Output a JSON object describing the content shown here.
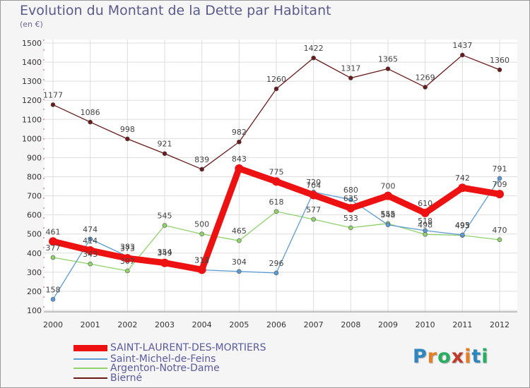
{
  "title": "Evolution du Montant de la Dette par Habitant",
  "subtitle": "(en €)",
  "colors": {
    "background": "#f5f5f5",
    "grid": "#dddddd",
    "axis_text": "#333333",
    "legend_text": "#5a5aa0"
  },
  "logo": {
    "text": "Proxiti",
    "letter_colors": [
      "#2e86c1",
      "#e67e22",
      "#27ae60",
      "#c0392b",
      "#e67e22",
      "#2e86c1",
      "#27ae60"
    ]
  },
  "chart_data": {
    "type": "line",
    "title": "Evolution du Montant de la Dette par Habitant",
    "ylabel": "(en €)",
    "xlabel": "",
    "x": [
      "2000",
      "2001",
      "2002",
      "2003",
      "2004",
      "2005",
      "2006",
      "2007",
      "2008",
      "2009",
      "2010",
      "2011",
      "2012"
    ],
    "ylim": [
      100,
      1500
    ],
    "yticks": [
      100,
      200,
      300,
      400,
      500,
      600,
      700,
      800,
      900,
      1000,
      1100,
      1200,
      1300,
      1400,
      1500
    ],
    "grid": true,
    "legend_position": "bottom",
    "series": [
      {
        "name": "Bierné",
        "color": "#6b1a1a",
        "width": "thin",
        "values": [
          1177,
          1086,
          998,
          921,
          839,
          982,
          1260,
          1422,
          1317,
          1365,
          1269,
          1437,
          1360
        ]
      },
      {
        "name": "Argenton-Notre-Dame",
        "color": "#8fd16a",
        "width": "thin",
        "values": [
          377,
          343,
          307,
          545,
          500,
          465,
          618,
          577,
          533,
          555,
          498,
          493,
          470
        ]
      },
      {
        "name": "Saint-Michel-de-Feins",
        "color": "#5b9bd5",
        "width": "thin",
        "values": [
          158,
          474,
          383,
          354,
          312,
          304,
          296,
          720,
          680,
          548,
          518,
          495,
          791
        ]
      },
      {
        "name": "SAINT-LAURENT-DES-MORTIERS",
        "color": "#ee1111",
        "width": "thick",
        "values": [
          461,
          414,
          373,
          349,
          313,
          843,
          775,
          704,
          635,
          700,
          610,
          742,
          709
        ]
      }
    ]
  },
  "legend": [
    {
      "label": "SAINT-LAURENT-DES-MORTIERS",
      "color": "#ee1111",
      "thickness": "thick"
    },
    {
      "label": "Saint-Michel-de-Feins",
      "color": "#5b9bd5",
      "thickness": "thin"
    },
    {
      "label": "Argenton-Notre-Dame",
      "color": "#8fd16a",
      "thickness": "thin"
    },
    {
      "label": "Bierné",
      "color": "#6b1a1a",
      "thickness": "thin"
    }
  ]
}
